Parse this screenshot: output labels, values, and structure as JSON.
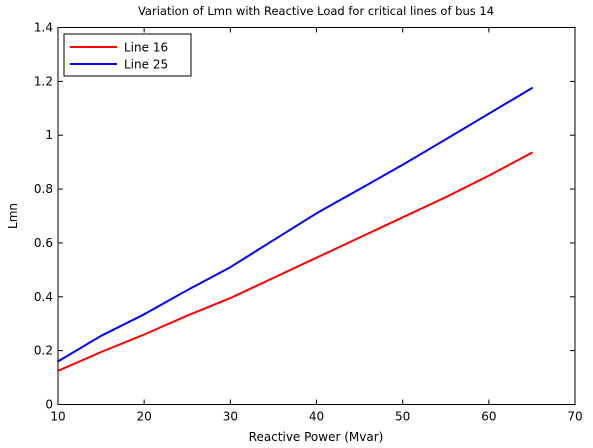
{
  "chart_data": {
    "type": "line",
    "title": "Variation of Lmn with Reactive Load for critical lines of bus 14",
    "xlabel": "Reactive Power (Mvar)",
    "ylabel": "Lmn",
    "xlim": [
      10,
      70
    ],
    "ylim": [
      0,
      1.4
    ],
    "xticks": [
      10,
      20,
      30,
      40,
      50,
      60,
      70
    ],
    "xtick_labels": [
      "10",
      "20",
      "30",
      "40",
      "50",
      "60",
      "70"
    ],
    "yticks": [
      0,
      0.2,
      0.4,
      0.6,
      0.8,
      1.0,
      1.2,
      1.4
    ],
    "ytick_labels": [
      "0",
      "0.2",
      "0.4",
      "0.6",
      "0.8",
      "1",
      "1.2",
      "1.4"
    ],
    "grid": false,
    "legend_position": "top-left",
    "series": [
      {
        "name": "Line 16",
        "color": "#ff0000",
        "x": [
          10,
          15,
          20,
          25,
          30,
          35,
          40,
          45,
          50,
          55,
          60,
          65
        ],
        "values": [
          0.125,
          0.195,
          0.26,
          0.33,
          0.395,
          0.47,
          0.545,
          0.62,
          0.695,
          0.77,
          0.85,
          0.935
        ]
      },
      {
        "name": "Line 25",
        "color": "#0000ff",
        "x": [
          10,
          15,
          20,
          25,
          30,
          35,
          40,
          45,
          50,
          55,
          60,
          65
        ],
        "values": [
          0.16,
          0.255,
          0.335,
          0.425,
          0.51,
          0.61,
          0.71,
          0.8,
          0.89,
          0.985,
          1.08,
          1.175
        ]
      }
    ]
  }
}
